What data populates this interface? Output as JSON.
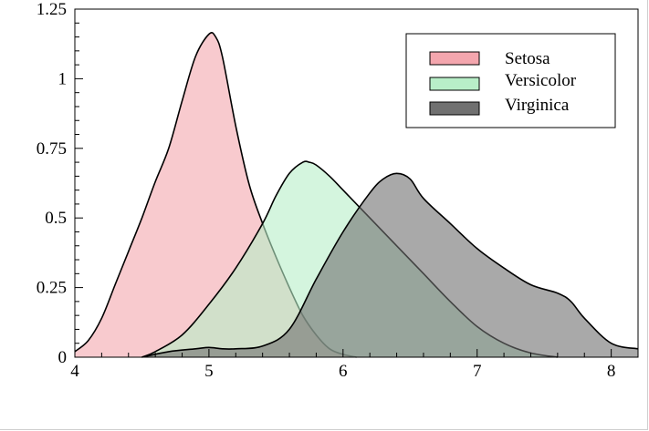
{
  "chart_data": {
    "type": "area",
    "title": "",
    "xlabel": "",
    "ylabel": "",
    "xlim": [
      4,
      8.2
    ],
    "ylim": [
      0,
      1.25
    ],
    "grid": false,
    "legend_position": "top-right",
    "x_ticks": [
      {
        "value": 4,
        "label": "4"
      },
      {
        "value": 5,
        "label": "5"
      },
      {
        "value": 6,
        "label": "6"
      },
      {
        "value": 7,
        "label": "7"
      },
      {
        "value": 8,
        "label": "8"
      }
    ],
    "y_ticks": [
      {
        "value": 0,
        "label": "0"
      },
      {
        "value": 0.25,
        "label": "0.25"
      },
      {
        "value": 0.5,
        "label": "0.5"
      },
      {
        "value": 0.75,
        "label": "0.75"
      },
      {
        "value": 1,
        "label": "1"
      },
      {
        "value": 1.25,
        "label": "1.25"
      }
    ],
    "series": [
      {
        "name": "Setosa",
        "color": "#f4a6ae",
        "x": [
          4.0,
          4.1,
          4.2,
          4.3,
          4.4,
          4.5,
          4.6,
          4.7,
          4.8,
          4.9,
          5.0,
          5.05,
          5.1,
          5.2,
          5.3,
          5.4,
          5.5,
          5.6,
          5.7,
          5.8,
          5.9,
          6.0,
          6.1
        ],
        "values": [
          0.02,
          0.06,
          0.14,
          0.26,
          0.38,
          0.5,
          0.63,
          0.75,
          0.92,
          1.08,
          1.16,
          1.15,
          1.08,
          0.83,
          0.62,
          0.48,
          0.36,
          0.25,
          0.15,
          0.08,
          0.03,
          0.01,
          0.0
        ]
      },
      {
        "name": "Versicolor",
        "color": "#b8eec8",
        "x": [
          4.5,
          4.6,
          4.8,
          5.0,
          5.2,
          5.4,
          5.5,
          5.6,
          5.7,
          5.75,
          5.8,
          5.9,
          6.0,
          6.2,
          6.4,
          6.6,
          6.8,
          7.0,
          7.2,
          7.4,
          7.6
        ],
        "values": [
          0.0,
          0.02,
          0.08,
          0.19,
          0.32,
          0.48,
          0.58,
          0.66,
          0.7,
          0.7,
          0.69,
          0.65,
          0.6,
          0.5,
          0.4,
          0.3,
          0.2,
          0.11,
          0.05,
          0.015,
          0.0
        ]
      },
      {
        "name": "Virginica",
        "color": "#707070",
        "x": [
          4.5,
          4.7,
          4.9,
          5.0,
          5.1,
          5.2,
          5.4,
          5.6,
          5.8,
          6.0,
          6.2,
          6.3,
          6.4,
          6.5,
          6.6,
          6.8,
          7.0,
          7.2,
          7.4,
          7.6,
          7.7,
          7.8,
          8.0,
          8.2
        ],
        "values": [
          0.0,
          0.02,
          0.03,
          0.035,
          0.03,
          0.03,
          0.04,
          0.1,
          0.28,
          0.45,
          0.59,
          0.64,
          0.66,
          0.64,
          0.57,
          0.48,
          0.39,
          0.32,
          0.26,
          0.23,
          0.2,
          0.14,
          0.05,
          0.03
        ]
      }
    ]
  }
}
